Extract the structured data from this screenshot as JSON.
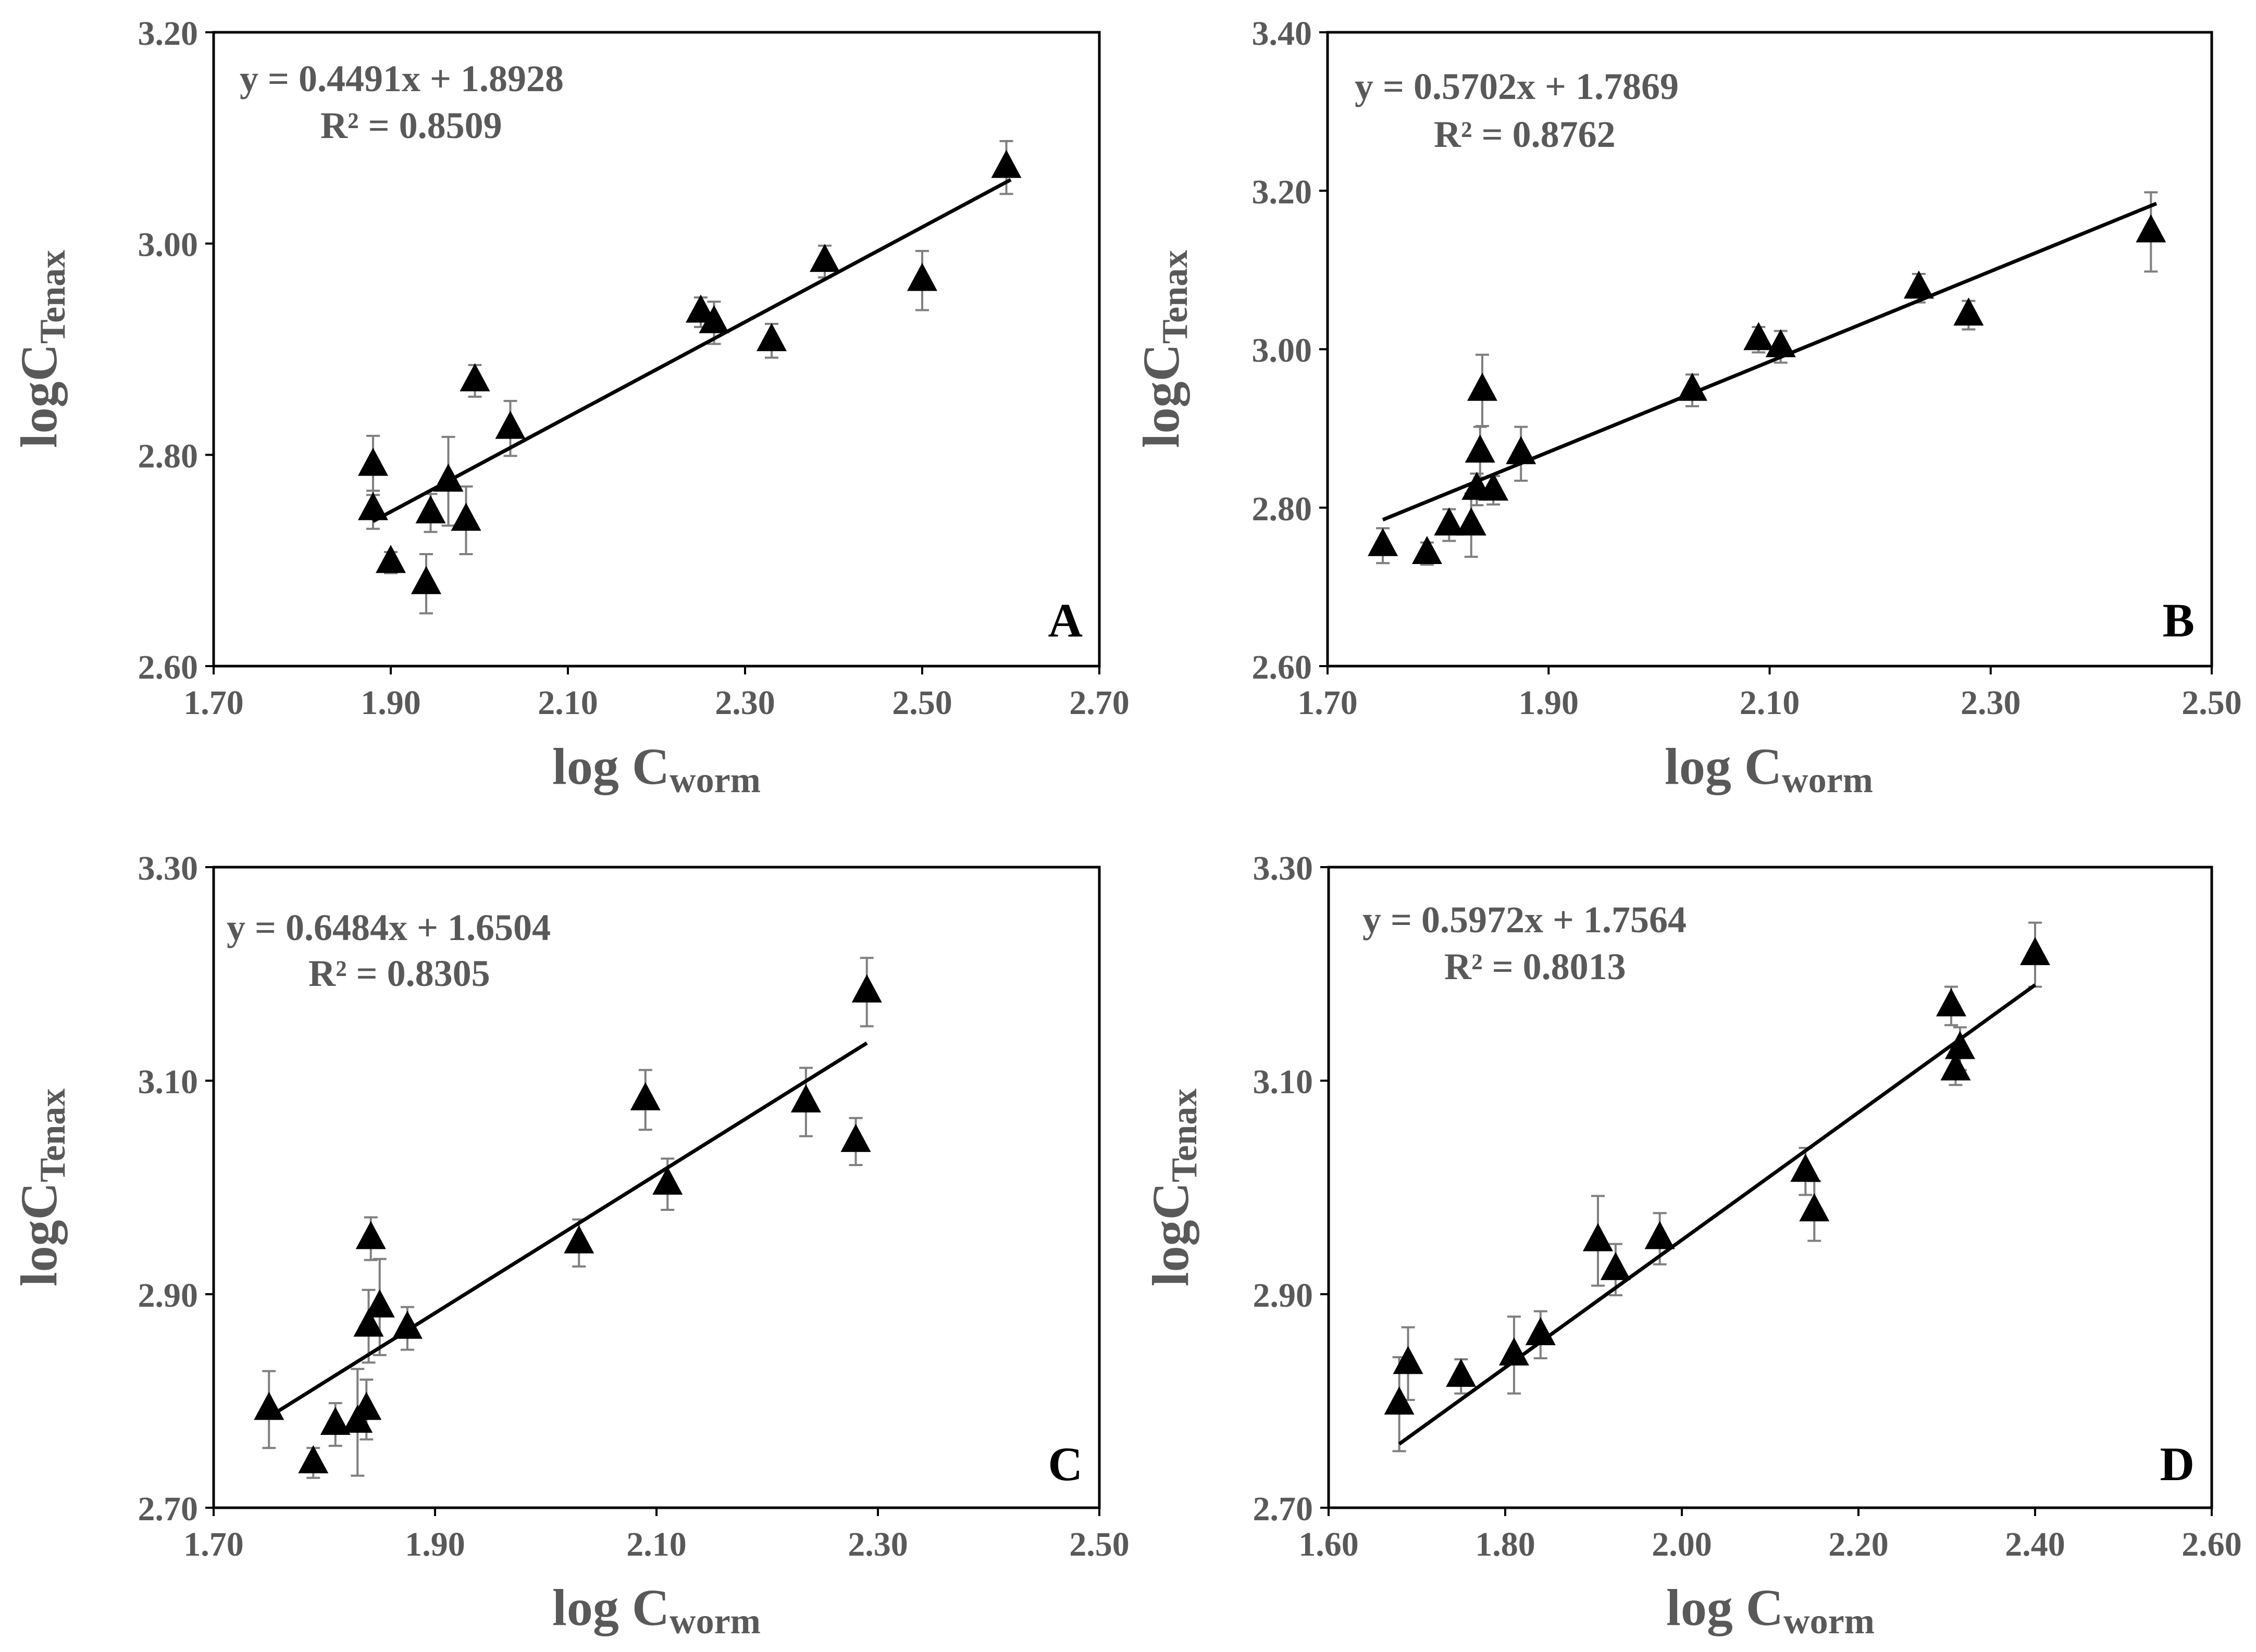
{
  "figure": {
    "panel_count": 4
  },
  "colors": {
    "marker": "#000000",
    "error_bar": "#7f7f7f",
    "fit_line": "#000000",
    "text": "#595959",
    "axis": "#000000"
  },
  "chart_data": [
    {
      "type": "scatter",
      "panel_label": "A",
      "ylabel_base": "logC",
      "ylabel_sub": "Tenax",
      "xlabel_base": "log C",
      "xlabel_sub": "worm",
      "equation": "y = 0.4491x + 1.8928",
      "r2": "R² = 0.8509",
      "xlim": [
        1.7,
        2.7
      ],
      "ylim": [
        2.6,
        3.2
      ],
      "xticks": [
        "1.70",
        "1.90",
        "2.10",
        "2.30",
        "2.50",
        "2.70"
      ],
      "yticks": [
        "2.60",
        "2.80",
        "3.00",
        "3.20"
      ],
      "trendline": {
        "slope": 0.4491,
        "intercept": 1.8928,
        "x_range": [
          1.88,
          2.6
        ]
      },
      "points": [
        {
          "x": 1.88,
          "y": 2.79,
          "err": 0.028
        },
        {
          "x": 1.88,
          "y": 2.748,
          "err": 0.018
        },
        {
          "x": 1.9,
          "y": 2.698,
          "err": 0.01
        },
        {
          "x": 1.94,
          "y": 2.678,
          "err": 0.028
        },
        {
          "x": 1.945,
          "y": 2.745,
          "err": 0.018
        },
        {
          "x": 1.965,
          "y": 2.775,
          "err": 0.042
        },
        {
          "x": 1.985,
          "y": 2.738,
          "err": 0.032
        },
        {
          "x": 1.995,
          "y": 2.87,
          "err": 0.015
        },
        {
          "x": 2.035,
          "y": 2.825,
          "err": 0.026
        },
        {
          "x": 2.25,
          "y": 2.935,
          "err": 0.014
        },
        {
          "x": 2.265,
          "y": 2.925,
          "err": 0.02
        },
        {
          "x": 2.33,
          "y": 2.908,
          "err": 0.016
        },
        {
          "x": 2.39,
          "y": 2.983,
          "err": 0.015
        },
        {
          "x": 2.5,
          "y": 2.965,
          "err": 0.028
        },
        {
          "x": 2.595,
          "y": 3.072,
          "err": 0.025
        }
      ]
    },
    {
      "type": "scatter",
      "panel_label": "B",
      "ylabel_base": "logC",
      "ylabel_sub": "Tenax",
      "xlabel_base": "log C",
      "xlabel_sub": "worm",
      "equation": "y = 0.5702x + 1.7869",
      "r2": "R² = 0.8762",
      "xlim": [
        1.7,
        2.5
      ],
      "ylim": [
        2.6,
        3.4
      ],
      "xticks": [
        "1.70",
        "1.90",
        "2.10",
        "2.30",
        "2.50"
      ],
      "yticks": [
        "2.60",
        "2.80",
        "3.00",
        "3.20",
        "3.40"
      ],
      "trendline": {
        "slope": 0.5702,
        "intercept": 1.7869,
        "x_range": [
          1.75,
          2.45
        ]
      },
      "points": [
        {
          "x": 1.75,
          "y": 2.752,
          "err": 0.022
        },
        {
          "x": 1.79,
          "y": 2.742,
          "err": 0.014
        },
        {
          "x": 1.81,
          "y": 2.778,
          "err": 0.02
        },
        {
          "x": 1.83,
          "y": 2.778,
          "err": 0.04
        },
        {
          "x": 1.835,
          "y": 2.823,
          "err": 0.02
        },
        {
          "x": 1.838,
          "y": 2.87,
          "err": 0.032
        },
        {
          "x": 1.84,
          "y": 2.948,
          "err": 0.045
        },
        {
          "x": 1.85,
          "y": 2.822,
          "err": 0.018
        },
        {
          "x": 1.875,
          "y": 2.868,
          "err": 0.034
        },
        {
          "x": 2.03,
          "y": 2.948,
          "err": 0.02
        },
        {
          "x": 2.09,
          "y": 3.012,
          "err": 0.016
        },
        {
          "x": 2.11,
          "y": 3.003,
          "err": 0.02
        },
        {
          "x": 2.235,
          "y": 3.077,
          "err": 0.018
        },
        {
          "x": 2.28,
          "y": 3.043,
          "err": 0.018
        },
        {
          "x": 2.445,
          "y": 3.148,
          "err": 0.05
        }
      ]
    },
    {
      "type": "scatter",
      "panel_label": "C",
      "ylabel_base": "logC",
      "ylabel_sub": "Tenax",
      "xlabel_base": "log C",
      "xlabel_sub": "worm",
      "equation": "y = 0.6484x + 1.6504",
      "r2": "R² = 0.8305",
      "xlim": [
        1.7,
        2.5
      ],
      "ylim": [
        2.7,
        3.3
      ],
      "xticks": [
        "1.70",
        "1.90",
        "2.10",
        "2.30",
        "2.50"
      ],
      "yticks": [
        "2.70",
        "2.90",
        "3.10",
        "3.30"
      ],
      "trendline": {
        "slope": 0.6484,
        "intercept": 1.6504,
        "x_range": [
          1.75,
          2.29
        ]
      },
      "points": [
        {
          "x": 1.75,
          "y": 2.792,
          "err": 0.036
        },
        {
          "x": 1.79,
          "y": 2.742,
          "err": 0.014
        },
        {
          "x": 1.81,
          "y": 2.778,
          "err": 0.02
        },
        {
          "x": 1.83,
          "y": 2.78,
          "err": 0.05
        },
        {
          "x": 1.838,
          "y": 2.792,
          "err": 0.028
        },
        {
          "x": 1.84,
          "y": 2.87,
          "err": 0.034
        },
        {
          "x": 1.842,
          "y": 2.952,
          "err": 0.02
        },
        {
          "x": 1.85,
          "y": 2.888,
          "err": 0.045
        },
        {
          "x": 1.875,
          "y": 2.868,
          "err": 0.02
        },
        {
          "x": 2.03,
          "y": 2.948,
          "err": 0.022
        },
        {
          "x": 2.09,
          "y": 3.082,
          "err": 0.028
        },
        {
          "x": 2.11,
          "y": 3.003,
          "err": 0.024
        },
        {
          "x": 2.235,
          "y": 3.08,
          "err": 0.032
        },
        {
          "x": 2.28,
          "y": 3.043,
          "err": 0.022
        },
        {
          "x": 2.29,
          "y": 3.183,
          "err": 0.032
        }
      ]
    },
    {
      "type": "scatter",
      "panel_label": "D",
      "ylabel_base": "logC",
      "ylabel_sub": "Tenax",
      "xlabel_base": "log C",
      "xlabel_sub": "worm",
      "equation": "y = 0.5972x + 1.7564",
      "r2": "R² = 0.8013",
      "xlim": [
        1.6,
        2.6
      ],
      "ylim": [
        2.7,
        3.3
      ],
      "xticks": [
        "1.60",
        "1.80",
        "2.00",
        "2.20",
        "2.40",
        "2.60"
      ],
      "yticks": [
        "2.70",
        "2.90",
        "3.10",
        "3.30"
      ],
      "trendline": {
        "slope": 0.5972,
        "intercept": 1.7564,
        "x_range": [
          1.68,
          2.4
        ]
      },
      "points": [
        {
          "x": 1.68,
          "y": 2.797,
          "err": 0.044
        },
        {
          "x": 1.69,
          "y": 2.835,
          "err": 0.034
        },
        {
          "x": 1.75,
          "y": 2.823,
          "err": 0.016
        },
        {
          "x": 1.81,
          "y": 2.843,
          "err": 0.036
        },
        {
          "x": 1.84,
          "y": 2.862,
          "err": 0.022
        },
        {
          "x": 1.905,
          "y": 2.95,
          "err": 0.042
        },
        {
          "x": 1.925,
          "y": 2.923,
          "err": 0.024
        },
        {
          "x": 1.975,
          "y": 2.952,
          "err": 0.024
        },
        {
          "x": 2.14,
          "y": 3.015,
          "err": 0.022
        },
        {
          "x": 2.15,
          "y": 2.978,
          "err": 0.028
        },
        {
          "x": 2.305,
          "y": 3.17,
          "err": 0.018
        },
        {
          "x": 2.31,
          "y": 3.11,
          "err": 0.014
        },
        {
          "x": 2.315,
          "y": 3.13,
          "err": 0.02
        },
        {
          "x": 2.4,
          "y": 3.218,
          "err": 0.03
        }
      ]
    }
  ]
}
